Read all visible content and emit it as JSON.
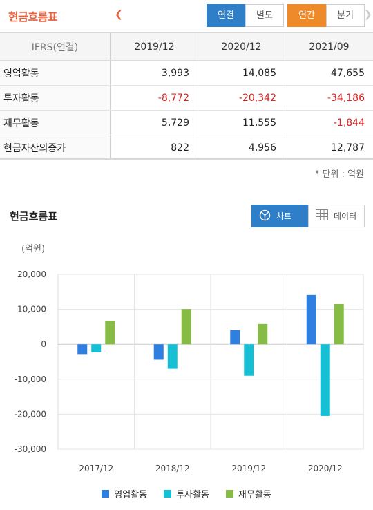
{
  "header": {
    "title": "현금흐름표",
    "consolidation": [
      "연결",
      "별도"
    ],
    "period": [
      "연간",
      "분기"
    ]
  },
  "table": {
    "corner": "IFRS(연결)",
    "columns": [
      "2019/12",
      "2020/12",
      "2021/09"
    ],
    "rows": [
      {
        "label": "영업활동",
        "values": [
          "3,993",
          "14,085",
          "47,655"
        ]
      },
      {
        "label": "투자활동",
        "values": [
          "-8,772",
          "-20,342",
          "-34,186"
        ]
      },
      {
        "label": "재무활동",
        "values": [
          "5,729",
          "11,555",
          "-1,844"
        ]
      },
      {
        "label": "현금자산의증가",
        "values": [
          "822",
          "4,956",
          "12,787"
        ]
      }
    ],
    "unit": "* 단위 : 억원"
  },
  "chart_section": {
    "title": "현금흐름표",
    "toggle_chart": "차트",
    "toggle_data": "데이터",
    "y_unit": "(억원)"
  },
  "colors": {
    "accent": "#e8603c",
    "blue": "#2f7fc8",
    "orange": "#ef8a2a",
    "negative": "#dd2222",
    "series": [
      "#2f7fe0",
      "#17bfd4",
      "#86bb46"
    ]
  },
  "chart_data": {
    "type": "bar",
    "categories": [
      "2017/12",
      "2018/12",
      "2019/12",
      "2020/12"
    ],
    "series": [
      {
        "name": "영업활동",
        "values": [
          -2800,
          -4400,
          4000,
          14100
        ]
      },
      {
        "name": "투자활동",
        "values": [
          -2300,
          -7000,
          -9000,
          -20500
        ]
      },
      {
        "name": "재무활동",
        "values": [
          6700,
          10100,
          5800,
          11500
        ]
      }
    ],
    "ylim": [
      -30000,
      20000
    ],
    "yticks": [
      20000,
      10000,
      0,
      -10000,
      -20000,
      -30000
    ],
    "ytick_labels": [
      "20,000",
      "10,000",
      "0",
      "-10,000",
      "-20,000",
      "-30,000"
    ],
    "grid": true,
    "legend": "bottom"
  }
}
